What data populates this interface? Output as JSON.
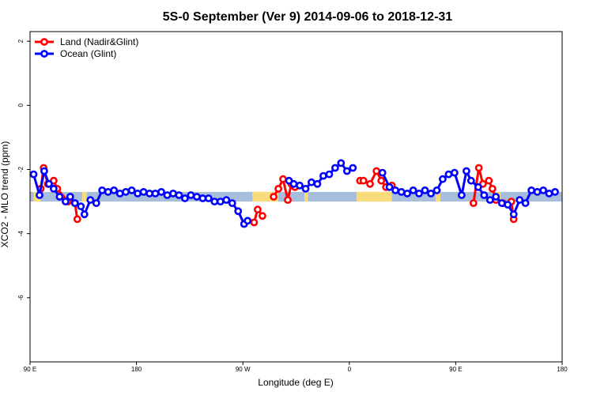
{
  "chart_data": {
    "type": "line",
    "title": "5S-0 September (Ver 9)   2014-09-06 to 2018-12-31",
    "xlabel": "Longitude (deg E)",
    "ylabel": "XCO2 - MLO trend (ppm)",
    "xlim": [
      90,
      540
    ],
    "ylim": [
      -8,
      2.3
    ],
    "x_ticks": [
      90,
      180,
      270,
      360,
      450,
      540
    ],
    "x_tick_labels": [
      "90 E",
      "180",
      "90 W",
      "0",
      "90 E",
      "180"
    ],
    "y_ticks": [
      2,
      0,
      -2,
      -4,
      -6
    ],
    "y_tick_labels": [
      "2",
      "0",
      "-2",
      "-4",
      "-6"
    ],
    "legend_position": "top-left",
    "band": {
      "y_min": -3.0,
      "y_max": -2.7
    },
    "band_colors": {
      "ocean": "#a6bedc",
      "land": "#f8dc7a"
    },
    "land_band_ranges": [
      [
        93,
        99
      ],
      [
        134,
        138
      ],
      [
        278,
        300
      ],
      [
        322,
        325
      ],
      [
        366,
        396
      ],
      [
        433,
        437
      ],
      [
        484,
        488
      ]
    ],
    "series": [
      {
        "name": "Land (Nadir&Glint)",
        "color": "#ff0000",
        "segments": [
          [
            [
              99,
              -2.6
            ],
            [
              101.5,
              -1.95
            ],
            [
              105,
              -2.45
            ],
            [
              110,
              -2.35
            ],
            [
              113,
              -2.6
            ],
            [
              122,
              -3.0
            ],
            [
              128,
              -3.05
            ],
            [
              130,
              -3.55
            ]
          ],
          [
            [
              279.5,
              -3.65
            ],
            [
              282.5,
              -3.25
            ],
            [
              286.5,
              -3.45
            ]
          ],
          [
            [
              296,
              -2.85
            ],
            [
              300,
              -2.6
            ],
            [
              304,
              -2.3
            ],
            [
              308,
              -2.95
            ],
            [
              311,
              -2.45
            ],
            [
              314,
              -2.55
            ]
          ],
          [
            [
              369,
              -2.35
            ],
            [
              372,
              -2.35
            ],
            [
              377.5,
              -2.45
            ],
            [
              383,
              -2.05
            ],
            [
              387,
              -2.35
            ],
            [
              391,
              -2.55
            ],
            [
              396,
              -2.5
            ]
          ],
          [
            [
              465,
              -3.05
            ],
            [
              469.5,
              -1.95
            ],
            [
              473,
              -2.45
            ],
            [
              478,
              -2.35
            ],
            [
              481,
              -2.6
            ],
            [
              484,
              -2.95
            ],
            [
              490,
              -3.05
            ],
            [
              497,
              -3.0
            ],
            [
              499,
              -3.55
            ]
          ]
        ]
      },
      {
        "name": "Ocean (Glint)",
        "color": "#0000ff",
        "segments": [
          [
            [
              93,
              -2.15
            ],
            [
              98,
              -2.8
            ],
            [
              102,
              -2.05
            ],
            [
              106,
              -2.45
            ],
            [
              110,
              -2.6
            ],
            [
              115,
              -2.85
            ],
            [
              120,
              -3.0
            ],
            [
              124,
              -2.85
            ],
            [
              128,
              -3.05
            ],
            [
              133,
              -3.15
            ],
            [
              136,
              -3.4
            ],
            [
              141,
              -2.95
            ],
            [
              146,
              -3.05
            ],
            [
              151,
              -2.65
            ],
            [
              156,
              -2.7
            ],
            [
              161,
              -2.65
            ],
            [
              166,
              -2.75
            ],
            [
              171,
              -2.7
            ],
            [
              176,
              -2.65
            ],
            [
              181,
              -2.75
            ],
            [
              186,
              -2.7
            ],
            [
              191,
              -2.75
            ],
            [
              196,
              -2.75
            ],
            [
              201,
              -2.7
            ],
            [
              206,
              -2.8
            ],
            [
              211,
              -2.75
            ],
            [
              216,
              -2.8
            ],
            [
              221,
              -2.9
            ],
            [
              226,
              -2.8
            ],
            [
              231,
              -2.85
            ],
            [
              236,
              -2.9
            ],
            [
              241,
              -2.9
            ],
            [
              246,
              -3.0
            ],
            [
              251,
              -3.0
            ],
            [
              256,
              -2.95
            ],
            [
              261,
              -3.05
            ],
            [
              266,
              -3.3
            ],
            [
              271,
              -3.7
            ],
            [
              274,
              -3.6
            ]
          ],
          [
            [
              309,
              -2.35
            ],
            [
              313,
              -2.45
            ],
            [
              318,
              -2.5
            ],
            [
              323,
              -2.6
            ],
            [
              328,
              -2.4
            ],
            [
              333,
              -2.45
            ],
            [
              338,
              -2.2
            ],
            [
              343,
              -2.15
            ],
            [
              348,
              -1.95
            ],
            [
              353,
              -1.8
            ],
            [
              358,
              -2.05
            ],
            [
              363,
              -1.95
            ]
          ],
          [
            [
              388,
              -2.1
            ],
            [
              394,
              -2.55
            ],
            [
              399,
              -2.65
            ],
            [
              404,
              -2.7
            ],
            [
              409,
              -2.75
            ],
            [
              414,
              -2.65
            ],
            [
              419,
              -2.75
            ],
            [
              424,
              -2.65
            ],
            [
              429,
              -2.75
            ],
            [
              434,
              -2.65
            ],
            [
              439,
              -2.3
            ],
            [
              444,
              -2.15
            ],
            [
              449,
              -2.1
            ],
            [
              455,
              -2.8
            ],
            [
              459,
              -2.05
            ],
            [
              463,
              -2.35
            ],
            [
              469,
              -2.55
            ],
            [
              474,
              -2.8
            ],
            [
              479,
              -2.95
            ],
            [
              484,
              -2.85
            ],
            [
              489,
              -3.05
            ],
            [
              494,
              -3.1
            ],
            [
              499,
              -3.4
            ],
            [
              504,
              -2.95
            ],
            [
              509,
              -3.05
            ],
            [
              514,
              -2.65
            ],
            [
              519,
              -2.7
            ],
            [
              524,
              -2.65
            ],
            [
              529,
              -2.75
            ],
            [
              534,
              -2.7
            ]
          ]
        ]
      }
    ]
  }
}
